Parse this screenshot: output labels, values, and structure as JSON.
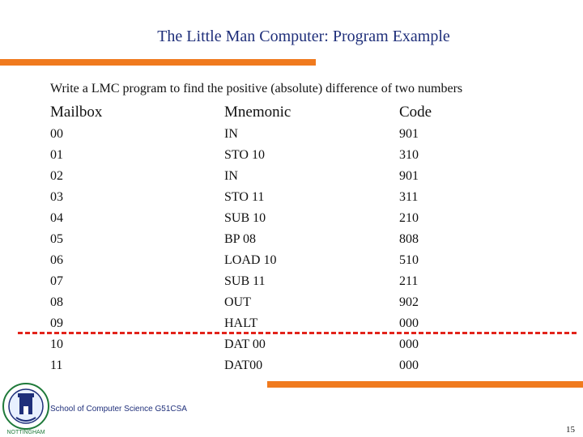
{
  "slide": {
    "title": "The Little Man Computer: Program Example",
    "subtitle": "Write a LMC program to find the positive (absolute) difference of two numbers",
    "footer": "School of Computer Science G51CSA",
    "page_number": "15"
  },
  "table": {
    "headers": {
      "mailbox": "Mailbox",
      "mnemonic": "Mnemonic",
      "code": "Code"
    },
    "rows": [
      {
        "mailbox": "00",
        "mnemonic": "IN",
        "code": "901"
      },
      {
        "mailbox": "01",
        "mnemonic": "STO 10",
        "code": "310"
      },
      {
        "mailbox": "02",
        "mnemonic": "IN",
        "code": "901"
      },
      {
        "mailbox": "03",
        "mnemonic": "STO 11",
        "code": "311"
      },
      {
        "mailbox": "04",
        "mnemonic": "SUB 10",
        "code": "210"
      },
      {
        "mailbox": "05",
        "mnemonic": "BP 08",
        "code": "808"
      },
      {
        "mailbox": "06",
        "mnemonic": "LOAD 10",
        "code": "510"
      },
      {
        "mailbox": "07",
        "mnemonic": "SUB 11",
        "code": "211"
      },
      {
        "mailbox": "08",
        "mnemonic": "OUT",
        "code": "902"
      },
      {
        "mailbox": "09",
        "mnemonic": "HALT",
        "code": "000"
      },
      {
        "mailbox": "10",
        "mnemonic": "DAT 00",
        "code": "000"
      },
      {
        "mailbox": "11",
        "mnemonic": "DAT00",
        "code": "000"
      }
    ]
  },
  "logo": {
    "name": "university-crest",
    "text": "NOTTINGHAM"
  },
  "colors": {
    "title": "#1f2f7a",
    "accent_bar": "#f07a1e",
    "dashed_line": "#e2231a"
  }
}
